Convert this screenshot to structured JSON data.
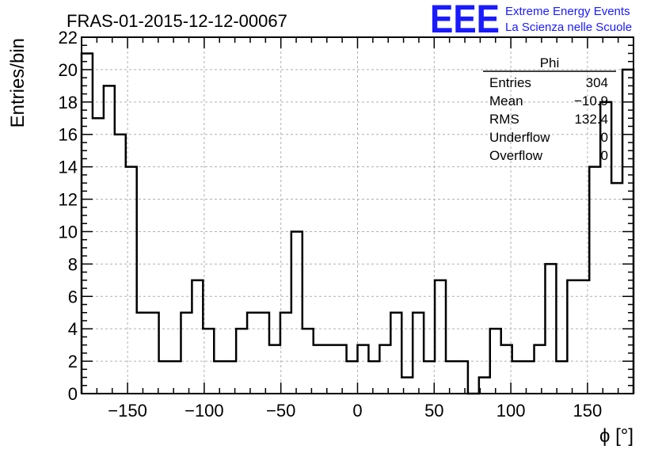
{
  "chart_data": {
    "type": "bar",
    "style": "step-histogram",
    "title": "FRAS-01-2015-12-12-00067",
    "xlabel": "ϕ [°]",
    "ylabel": "Entries/bin",
    "xlim": [
      -180,
      180
    ],
    "ylim": [
      0,
      22
    ],
    "xticks": [
      -150,
      -100,
      -50,
      0,
      50,
      100,
      150
    ],
    "yticks": [
      0,
      2,
      4,
      6,
      8,
      10,
      12,
      14,
      16,
      18,
      20,
      22
    ],
    "grid": true,
    "bin_width": 7.2,
    "values": [
      21,
      17,
      19,
      16,
      14,
      5,
      5,
      2,
      2,
      5,
      7,
      4,
      2,
      2,
      4,
      5,
      5,
      3,
      5,
      10,
      4,
      3,
      3,
      3,
      2,
      3,
      2,
      3,
      5,
      1,
      5,
      2,
      7,
      2,
      2,
      0,
      1,
      4,
      3,
      2,
      2,
      3,
      8,
      2,
      7,
      7,
      14,
      18,
      13,
      20
    ]
  },
  "stats_box": {
    "title": "Phi",
    "rows": [
      {
        "label": "Entries",
        "value": "304"
      },
      {
        "label": "Mean",
        "value": "−10.9"
      },
      {
        "label": "RMS",
        "value": "132.4"
      },
      {
        "label": "Underflow",
        "value": "0"
      },
      {
        "label": "Overflow",
        "value": "0"
      }
    ]
  },
  "branding": {
    "logo_text": "EEE",
    "line1": "Extreme Energy Events",
    "line2": "La Scienza nelle Scuole",
    "color": "#1a1aff"
  }
}
